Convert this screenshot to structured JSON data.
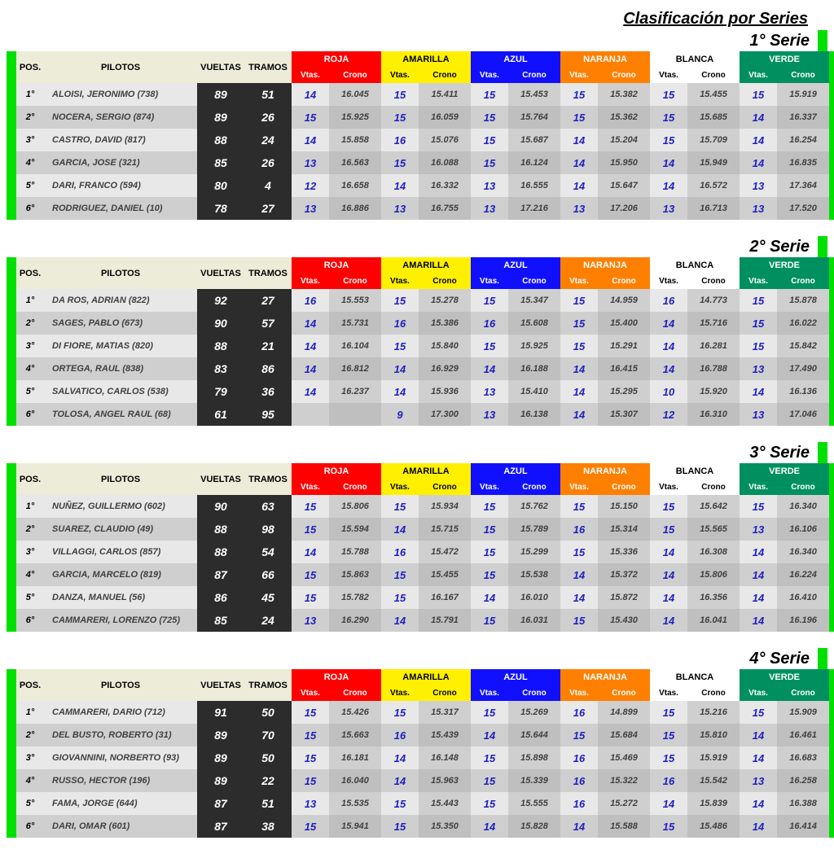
{
  "title": "Clasificación por Series",
  "headers": {
    "pos": "POS.",
    "pilotos": "PILOTOS",
    "vueltas": "VUELTAS",
    "tramos": "TRAMOS",
    "vtas": "Vtas.",
    "crono": "Crono"
  },
  "lanes": [
    {
      "key": "roja",
      "label": "ROJA",
      "bg": "#ff0000",
      "fg": "#ffffff"
    },
    {
      "key": "amarilla",
      "label": "AMARILLA",
      "bg": "#fff000",
      "fg": "#000000"
    },
    {
      "key": "azul",
      "label": "AZUL",
      "bg": "#1010ff",
      "fg": "#ffffff"
    },
    {
      "key": "naranja",
      "label": "NARANJA",
      "bg": "#ff7f00",
      "fg": "#ffffff"
    },
    {
      "key": "blanca",
      "label": "BLANCA",
      "bg": "#ffffff",
      "fg": "#000000"
    },
    {
      "key": "verde",
      "label": "VERDE",
      "bg": "#009060",
      "fg": "#ffffff"
    }
  ],
  "edge_color": "#00e000",
  "series": [
    {
      "title": "1° Serie",
      "rows": [
        {
          "pos": "1°",
          "pilot": "ALOISI, JERONIMO (738)",
          "vueltas": "89",
          "tramos": "51",
          "lanes": [
            [
              "14",
              "16.045"
            ],
            [
              "15",
              "15.411"
            ],
            [
              "15",
              "15.453"
            ],
            [
              "15",
              "15.382"
            ],
            [
              "15",
              "15.455"
            ],
            [
              "15",
              "15.919"
            ]
          ]
        },
        {
          "pos": "2°",
          "pilot": "NOCERA, SERGIO (874)",
          "vueltas": "89",
          "tramos": "26",
          "lanes": [
            [
              "15",
              "15.925"
            ],
            [
              "15",
              "16.059"
            ],
            [
              "15",
              "15.764"
            ],
            [
              "15",
              "15.362"
            ],
            [
              "15",
              "15.685"
            ],
            [
              "14",
              "16.337"
            ]
          ]
        },
        {
          "pos": "3°",
          "pilot": "CASTRO, DAVID (817)",
          "vueltas": "88",
          "tramos": "24",
          "lanes": [
            [
              "14",
              "15.858"
            ],
            [
              "16",
              "15.076"
            ],
            [
              "15",
              "15.687"
            ],
            [
              "14",
              "15.204"
            ],
            [
              "15",
              "15.709"
            ],
            [
              "14",
              "16.254"
            ]
          ]
        },
        {
          "pos": "4°",
          "pilot": "GARCIA, JOSE (321)",
          "vueltas": "85",
          "tramos": "26",
          "lanes": [
            [
              "13",
              "16.563"
            ],
            [
              "15",
              "16.088"
            ],
            [
              "15",
              "16.124"
            ],
            [
              "14",
              "15.950"
            ],
            [
              "14",
              "15.949"
            ],
            [
              "14",
              "16.835"
            ]
          ]
        },
        {
          "pos": "5°",
          "pilot": "DARI, FRANCO (594)",
          "vueltas": "80",
          "tramos": "4",
          "lanes": [
            [
              "12",
              "16.658"
            ],
            [
              "14",
              "16.332"
            ],
            [
              "13",
              "16.555"
            ],
            [
              "14",
              "15.647"
            ],
            [
              "14",
              "16.572"
            ],
            [
              "13",
              "17.364"
            ]
          ]
        },
        {
          "pos": "6°",
          "pilot": "RODRIGUEZ, DANIEL (10)",
          "vueltas": "78",
          "tramos": "27",
          "lanes": [
            [
              "13",
              "16.886"
            ],
            [
              "13",
              "16.755"
            ],
            [
              "13",
              "17.216"
            ],
            [
              "13",
              "17.206"
            ],
            [
              "13",
              "16.713"
            ],
            [
              "13",
              "17.520"
            ]
          ]
        }
      ]
    },
    {
      "title": "2° Serie",
      "rows": [
        {
          "pos": "1°",
          "pilot": "DA ROS, ADRIAN (822)",
          "vueltas": "92",
          "tramos": "27",
          "lanes": [
            [
              "16",
              "15.553"
            ],
            [
              "15",
              "15.278"
            ],
            [
              "15",
              "15.347"
            ],
            [
              "15",
              "14.959"
            ],
            [
              "16",
              "14.773"
            ],
            [
              "15",
              "15.878"
            ]
          ]
        },
        {
          "pos": "2°",
          "pilot": "SAGES, PABLO (673)",
          "vueltas": "90",
          "tramos": "57",
          "lanes": [
            [
              "14",
              "15.731"
            ],
            [
              "16",
              "15.386"
            ],
            [
              "16",
              "15.608"
            ],
            [
              "15",
              "15.400"
            ],
            [
              "14",
              "15.716"
            ],
            [
              "15",
              "16.022"
            ]
          ]
        },
        {
          "pos": "3°",
          "pilot": "DI FIORE, MATIAS (820)",
          "vueltas": "88",
          "tramos": "21",
          "lanes": [
            [
              "14",
              "16.104"
            ],
            [
              "15",
              "15.840"
            ],
            [
              "15",
              "15.925"
            ],
            [
              "15",
              "15.291"
            ],
            [
              "14",
              "16.281"
            ],
            [
              "15",
              "15.842"
            ]
          ]
        },
        {
          "pos": "4°",
          "pilot": "ORTEGA, RAUL (838)",
          "vueltas": "83",
          "tramos": "86",
          "lanes": [
            [
              "14",
              "16.812"
            ],
            [
              "14",
              "16.929"
            ],
            [
              "14",
              "16.188"
            ],
            [
              "14",
              "16.415"
            ],
            [
              "14",
              "16.788"
            ],
            [
              "13",
              "17.490"
            ]
          ]
        },
        {
          "pos": "5°",
          "pilot": "SALVATICO, CARLOS  (538)",
          "vueltas": "79",
          "tramos": "36",
          "lanes": [
            [
              "14",
              "16.237"
            ],
            [
              "14",
              "15.936"
            ],
            [
              "13",
              "15.410"
            ],
            [
              "14",
              "15.295"
            ],
            [
              "10",
              "15.920"
            ],
            [
              "14",
              "16.136"
            ]
          ]
        },
        {
          "pos": "6°",
          "pilot": "TOLOSA, ANGEL RAUL (68)",
          "vueltas": "61",
          "tramos": "95",
          "lanes": [
            [
              "",
              ""
            ],
            [
              "9",
              "17.300"
            ],
            [
              "13",
              "16.138"
            ],
            [
              "14",
              "15.307"
            ],
            [
              "12",
              "16.310"
            ],
            [
              "13",
              "17.046"
            ]
          ]
        }
      ]
    },
    {
      "title": "3° Serie",
      "rows": [
        {
          "pos": "1°",
          "pilot": "NUÑEZ, GUILLERMO  (602)",
          "vueltas": "90",
          "tramos": "63",
          "lanes": [
            [
              "15",
              "15.806"
            ],
            [
              "15",
              "15.934"
            ],
            [
              "15",
              "15.762"
            ],
            [
              "15",
              "15.150"
            ],
            [
              "15",
              "15.642"
            ],
            [
              "15",
              "16.340"
            ]
          ]
        },
        {
          "pos": "2°",
          "pilot": "SUAREZ, CLAUDIO (49)",
          "vueltas": "88",
          "tramos": "98",
          "lanes": [
            [
              "15",
              "15.594"
            ],
            [
              "14",
              "15.715"
            ],
            [
              "15",
              "15.789"
            ],
            [
              "16",
              "15.314"
            ],
            [
              "15",
              "15.565"
            ],
            [
              "13",
              "16.106"
            ]
          ]
        },
        {
          "pos": "3°",
          "pilot": "VILLAGGI, CARLOS (857)",
          "vueltas": "88",
          "tramos": "54",
          "lanes": [
            [
              "14",
              "15.788"
            ],
            [
              "16",
              "15.472"
            ],
            [
              "15",
              "15.299"
            ],
            [
              "15",
              "15.336"
            ],
            [
              "14",
              "16.308"
            ],
            [
              "14",
              "16.340"
            ]
          ]
        },
        {
          "pos": "4°",
          "pilot": "GARCIA, MARCELO (819)",
          "vueltas": "87",
          "tramos": "66",
          "lanes": [
            [
              "15",
              "15.863"
            ],
            [
              "15",
              "15.455"
            ],
            [
              "15",
              "15.538"
            ],
            [
              "14",
              "15.372"
            ],
            [
              "14",
              "15.806"
            ],
            [
              "14",
              "16.224"
            ]
          ]
        },
        {
          "pos": "5°",
          "pilot": "DANZA, MANUEL (56)",
          "vueltas": "86",
          "tramos": "45",
          "lanes": [
            [
              "15",
              "15.782"
            ],
            [
              "15",
              "16.167"
            ],
            [
              "14",
              "16.010"
            ],
            [
              "14",
              "15.872"
            ],
            [
              "14",
              "16.356"
            ],
            [
              "14",
              "16.410"
            ]
          ]
        },
        {
          "pos": "6°",
          "pilot": "CAMMARERI, LORENZO (725)",
          "vueltas": "85",
          "tramos": "24",
          "lanes": [
            [
              "13",
              "16.290"
            ],
            [
              "14",
              "15.791"
            ],
            [
              "15",
              "16.031"
            ],
            [
              "15",
              "15.430"
            ],
            [
              "14",
              "16.041"
            ],
            [
              "14",
              "16.196"
            ]
          ]
        }
      ]
    },
    {
      "title": "4° Serie",
      "rows": [
        {
          "pos": "1°",
          "pilot": "CAMMARERI, DARIO (712)",
          "vueltas": "91",
          "tramos": "50",
          "lanes": [
            [
              "15",
              "15.426"
            ],
            [
              "15",
              "15.317"
            ],
            [
              "15",
              "15.269"
            ],
            [
              "16",
              "14.899"
            ],
            [
              "15",
              "15.216"
            ],
            [
              "15",
              "15.909"
            ]
          ]
        },
        {
          "pos": "2°",
          "pilot": "DEL BUSTO, ROBERTO (31)",
          "vueltas": "89",
          "tramos": "70",
          "lanes": [
            [
              "15",
              "15.663"
            ],
            [
              "16",
              "15.439"
            ],
            [
              "14",
              "15.644"
            ],
            [
              "15",
              "15.684"
            ],
            [
              "15",
              "15.810"
            ],
            [
              "14",
              "16.461"
            ]
          ]
        },
        {
          "pos": "3°",
          "pilot": "GIOVANNINI, NORBERTO (93)",
          "vueltas": "89",
          "tramos": "50",
          "lanes": [
            [
              "15",
              "16.181"
            ],
            [
              "14",
              "16.148"
            ],
            [
              "15",
              "15.898"
            ],
            [
              "16",
              "15.469"
            ],
            [
              "15",
              "15.919"
            ],
            [
              "14",
              "16.683"
            ]
          ]
        },
        {
          "pos": "4°",
          "pilot": "RUSSO, HECTOR (196)",
          "vueltas": "89",
          "tramos": "22",
          "lanes": [
            [
              "15",
              "16.040"
            ],
            [
              "14",
              "15.963"
            ],
            [
              "15",
              "15.339"
            ],
            [
              "16",
              "15.322"
            ],
            [
              "16",
              "15.542"
            ],
            [
              "13",
              "16.258"
            ]
          ]
        },
        {
          "pos": "5°",
          "pilot": "FAMA, JORGE (644)",
          "vueltas": "87",
          "tramos": "51",
          "lanes": [
            [
              "13",
              "15.535"
            ],
            [
              "15",
              "15.443"
            ],
            [
              "15",
              "15.555"
            ],
            [
              "16",
              "15.272"
            ],
            [
              "14",
              "15.839"
            ],
            [
              "14",
              "16.388"
            ]
          ]
        },
        {
          "pos": "6°",
          "pilot": "DARI, OMAR (601)",
          "vueltas": "87",
          "tramos": "38",
          "lanes": [
            [
              "15",
              "15.941"
            ],
            [
              "15",
              "15.350"
            ],
            [
              "14",
              "15.828"
            ],
            [
              "14",
              "15.588"
            ],
            [
              "15",
              "15.486"
            ],
            [
              "14",
              "16.414"
            ]
          ]
        }
      ]
    }
  ]
}
